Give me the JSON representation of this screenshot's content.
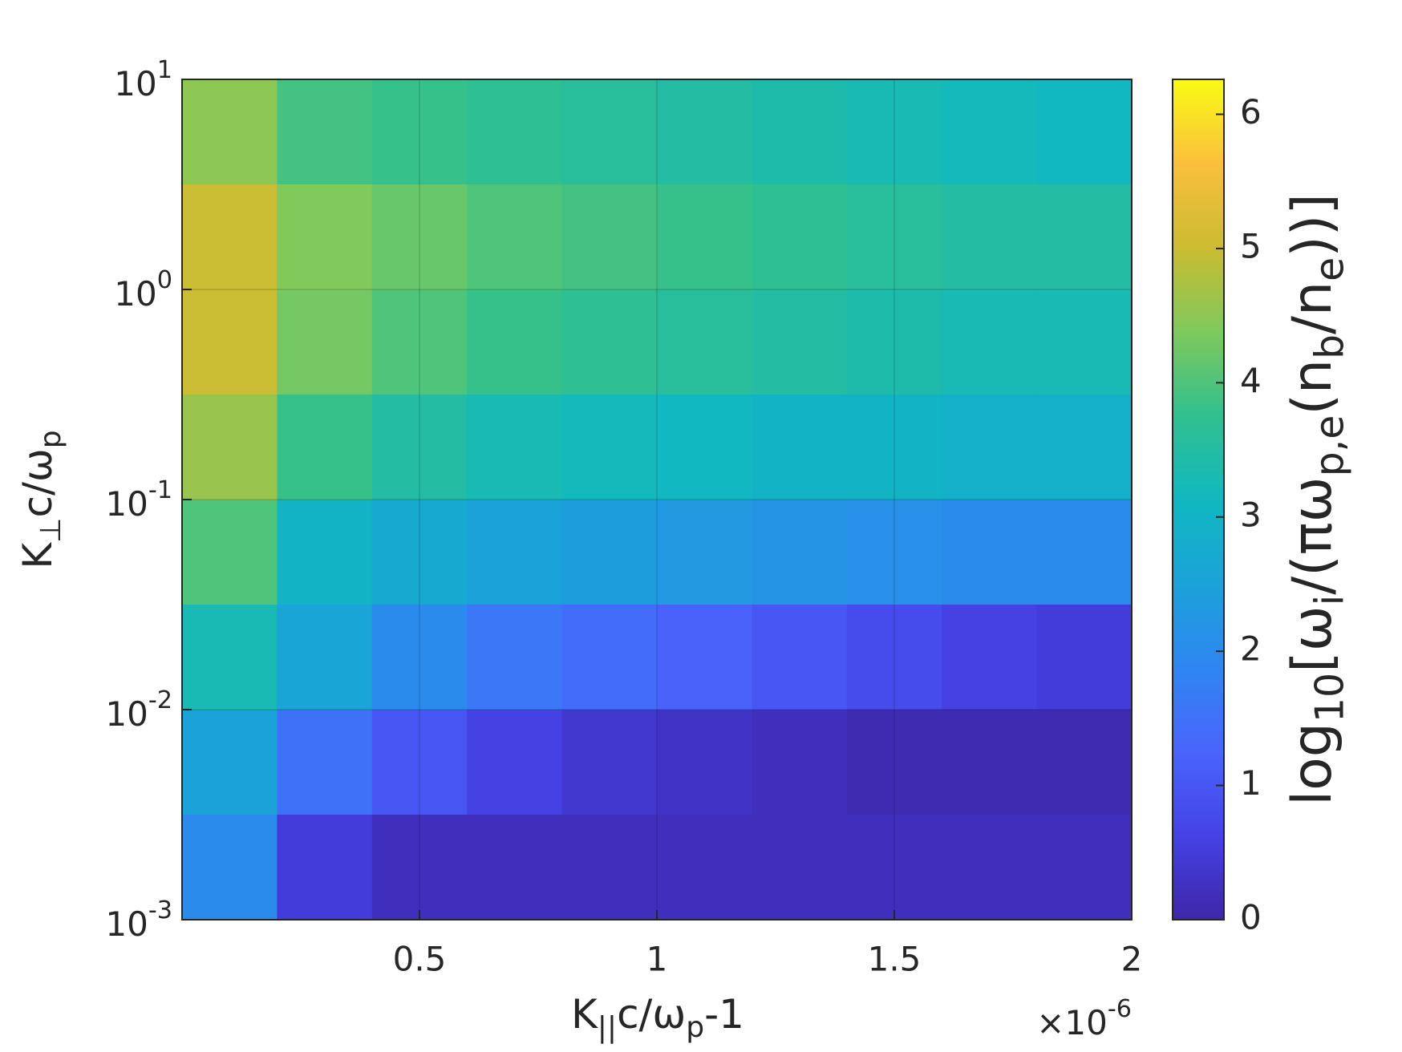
{
  "chart_data": {
    "type": "heatmap",
    "xlabel": "K_{||}c/ω_{p}-1",
    "ylabel": "K_{⊥}c/ω_{p}",
    "x_multiplier": "×10^{-6}",
    "colorbar_label": "log_{10}[ω_{i}/(πω_{p,e}(n_{b}/n_{e}))]",
    "xlim": [
      0,
      2
    ],
    "xticks": [
      0.5,
      1,
      1.5,
      2
    ],
    "ylim": [
      0.001,
      10
    ],
    "ylog": true,
    "yticks": [
      {
        "value": 0.001,
        "label": "10^{-3}"
      },
      {
        "value": 0.01,
        "label": "10^{-2}"
      },
      {
        "value": 0.1,
        "label": "10^{-1}"
      },
      {
        "value": 1,
        "label": "10^{0}"
      },
      {
        "value": 10,
        "label": "10^{1}"
      }
    ],
    "grid": true,
    "x": [
      0.1,
      0.3,
      0.5,
      0.7,
      0.9,
      1.1,
      1.3,
      1.5,
      1.7,
      1.9
    ],
    "y": [
      5.62,
      1.78,
      0.562,
      0.178,
      0.0562,
      0.0178,
      0.00562,
      0.00178
    ],
    "z": [
      [
        4.5,
        3.9,
        3.8,
        3.7,
        3.6,
        3.5,
        3.4,
        3.3,
        3.2,
        3.1
      ],
      [
        5.0,
        4.4,
        4.2,
        4.0,
        3.9,
        3.8,
        3.7,
        3.6,
        3.5,
        3.5
      ],
      [
        5.0,
        4.3,
        4.0,
        3.8,
        3.7,
        3.6,
        3.5,
        3.4,
        3.3,
        3.3
      ],
      [
        4.6,
        3.8,
        3.5,
        3.3,
        3.2,
        3.1,
        3.0,
        3.0,
        2.9,
        2.9
      ],
      [
        4.0,
        3.0,
        2.7,
        2.5,
        2.4,
        2.3,
        2.2,
        2.1,
        2.0,
        2.0
      ],
      [
        3.3,
        2.6,
        2.0,
        1.6,
        1.4,
        1.2,
        1.0,
        0.8,
        0.6,
        0.5
      ],
      [
        2.5,
        1.5,
        1.0,
        0.6,
        0.4,
        0.3,
        0.2,
        0.1,
        0.1,
        0.1
      ],
      [
        2.0,
        0.5,
        0.2,
        0.2,
        0.2,
        0.2,
        0.2,
        0.2,
        0.2,
        0.2
      ]
    ],
    "clim": [
      0,
      6.26
    ],
    "cticks": [
      0,
      1,
      2,
      3,
      4,
      5,
      6
    ],
    "colormap": [
      "#3e26a8",
      "#4542e6",
      "#4a64fc",
      "#2f86f2",
      "#1ba2d9",
      "#10b8c0",
      "#31c08f",
      "#7fc95c",
      "#cbbc32",
      "#fbbf3c",
      "#f9fb15"
    ]
  }
}
